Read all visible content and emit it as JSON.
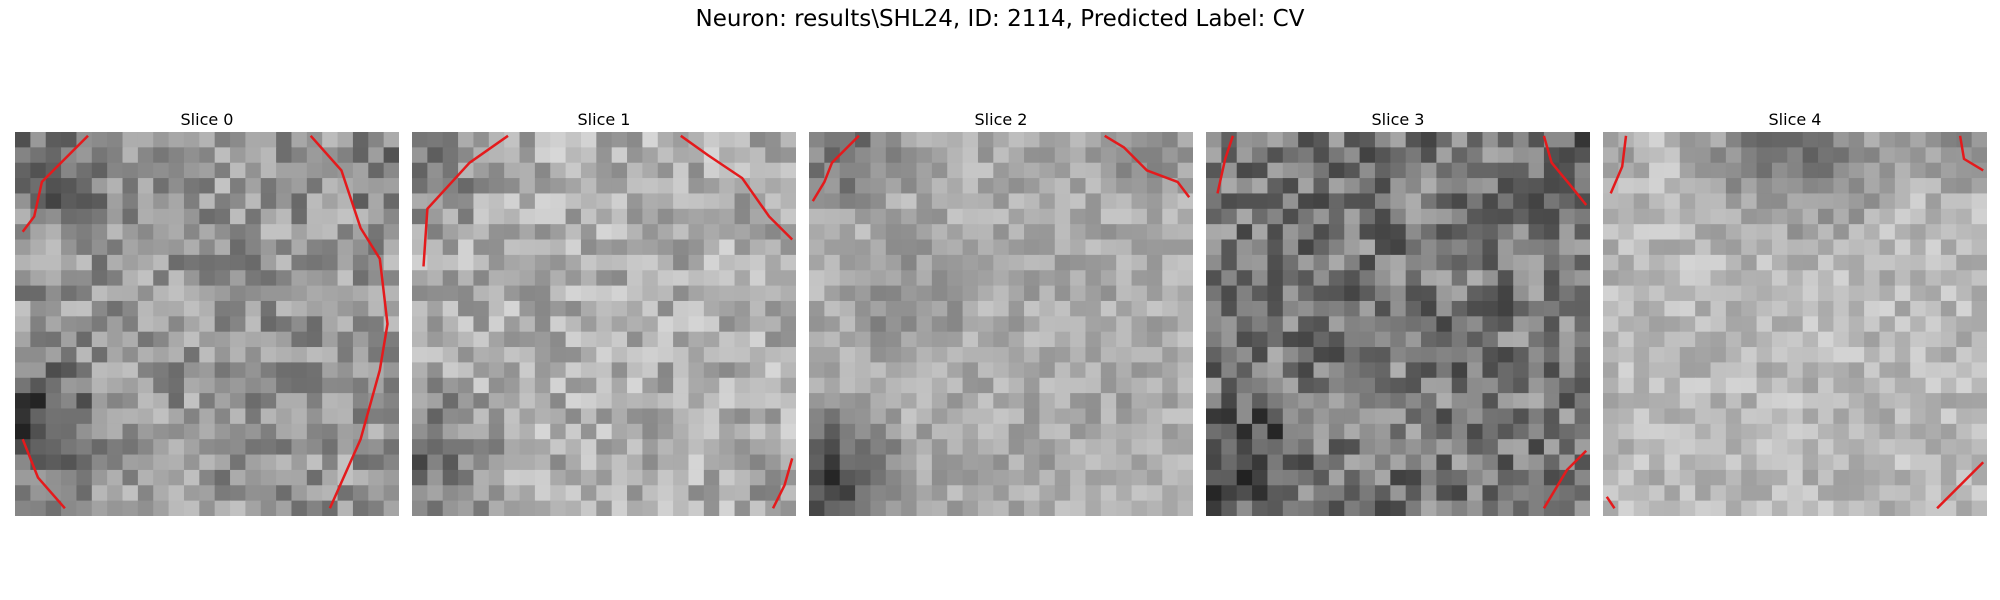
{
  "figure": {
    "title": "Neuron: results\\SHL24, ID: 2114, Predicted Label: CV",
    "contour_color": "#e41a1c",
    "colormap": "gray"
  },
  "panels": [
    {
      "title": "Slice 0"
    },
    {
      "title": "Slice 1"
    },
    {
      "title": "Slice 2"
    },
    {
      "title": "Slice 3"
    },
    {
      "title": "Slice 4"
    }
  ]
}
